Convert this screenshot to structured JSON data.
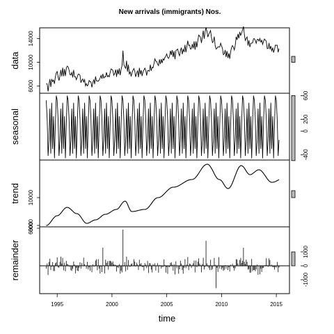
{
  "chart_data": {
    "type": "line",
    "title": "New arrivals (immigrants) Nos.",
    "xlabel": "time",
    "xlim": [
      1993.4,
      2016.2
    ],
    "x_ticks": [
      "1995",
      "2000",
      "2005",
      "2010",
      "2015"
    ],
    "frequency": 12,
    "start": 1994.0,
    "grid": false,
    "legend": "none",
    "panels": [
      {
        "name": "data",
        "label": "data",
        "ylim": [
          4800,
          15800
        ],
        "left_ticks": [
          "6000",
          "10000",
          "14000"
        ],
        "right_ticks": [],
        "scale_bar": [
          10000,
          11000
        ],
        "trend_anchors": [
          [
            1994.0,
            6200
          ],
          [
            1995.9,
            8400
          ],
          [
            1997.7,
            6900
          ],
          [
            1999.4,
            7800
          ],
          [
            2001.0,
            9100
          ],
          [
            2002.0,
            8000
          ],
          [
            2003.3,
            8900
          ],
          [
            2004.5,
            10300
          ],
          [
            2005.8,
            11800
          ],
          [
            2007.3,
            13000
          ],
          [
            2008.7,
            14500
          ],
          [
            2010.4,
            11600
          ],
          [
            2012.2,
            14600
          ],
          [
            2013.2,
            13300
          ],
          [
            2014.4,
            12000
          ],
          [
            2015.5,
            12000
          ]
        ],
        "spikes": [
          [
            2001.0,
            2200
          ],
          [
            2008.6,
            1600
          ],
          [
            2012.0,
            1200
          ]
        ]
      },
      {
        "name": "seasonal",
        "label": "seasonal",
        "ylim": [
          -490,
          640
        ],
        "left_ticks": [],
        "right_ticks": [
          "-400",
          "0",
          "200",
          "600"
        ],
        "scale_bar": [
          -500,
          600
        ],
        "pattern": [
          520,
          200,
          -420,
          -150,
          380,
          -380,
          480,
          -300,
          250,
          -460,
          120,
          600
        ]
      },
      {
        "name": "trend",
        "label": "trend",
        "ylim": [
          5800,
          15400
        ],
        "left_ticks": [
          "6000",
          "10000"
        ],
        "right_ticks": [],
        "scale_bar": [
          10000,
          11000
        ],
        "anchors": [
          [
            1994.0,
            6000
          ],
          [
            1995.0,
            7400
          ],
          [
            1995.9,
            8600
          ],
          [
            1996.8,
            7700
          ],
          [
            1997.7,
            6300
          ],
          [
            1998.5,
            6800
          ],
          [
            1999.4,
            7600
          ],
          [
            2000.4,
            8300
          ],
          [
            2001.2,
            9500
          ],
          [
            2001.8,
            8000
          ],
          [
            2003.0,
            8300
          ],
          [
            2004.2,
            10000
          ],
          [
            2005.6,
            11500
          ],
          [
            2007.3,
            12600
          ],
          [
            2008.7,
            14800
          ],
          [
            2009.8,
            12600
          ],
          [
            2010.6,
            11300
          ],
          [
            2011.8,
            14600
          ],
          [
            2012.6,
            13300
          ],
          [
            2013.4,
            14000
          ],
          [
            2014.6,
            12200
          ],
          [
            2015.7,
            12800
          ]
        ]
      },
      {
        "name": "remainder",
        "label": "remainder",
        "ylim": [
          -2000,
          2800
        ],
        "left_ticks": [
          "6000"
        ],
        "right_ticks": [
          "-1000",
          "0",
          "1000"
        ],
        "scale_bar": [
          0,
          1000
        ],
        "spikes": [
          [
            2001.0,
            2600
          ],
          [
            2008.6,
            1800
          ],
          [
            2012.0,
            1300
          ],
          [
            2009.5,
            -1600
          ],
          [
            1999.2,
            1300
          ]
        ]
      }
    ]
  }
}
